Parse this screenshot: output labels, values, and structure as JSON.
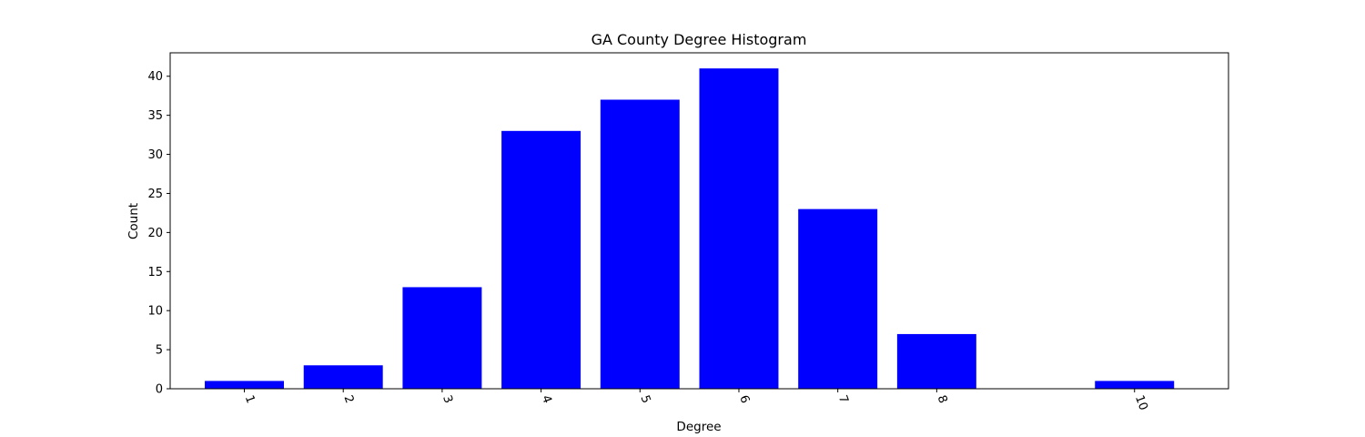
{
  "chart_data": {
    "type": "bar",
    "title": "GA County Degree Histogram",
    "xlabel": "Degree",
    "ylabel": "Count",
    "x": [
      1,
      2,
      3,
      4,
      5,
      6,
      7,
      8,
      10
    ],
    "values": [
      1,
      3,
      13,
      33,
      37,
      41,
      23,
      7,
      1
    ],
    "xlim": [
      0.25,
      10.95
    ],
    "ylim": [
      0,
      43
    ],
    "yticks": [
      0,
      5,
      10,
      15,
      20,
      25,
      30,
      35,
      40
    ],
    "bar_color": "#0000ff",
    "grid": false,
    "xtick_rotation": "rotated (-70°)"
  }
}
